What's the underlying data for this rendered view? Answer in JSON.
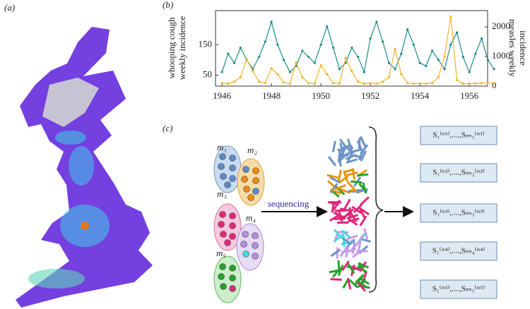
{
  "panel_labels": [
    "(a)",
    "(b)",
    "(c)"
  ],
  "chart_data": {
    "type": "line",
    "ylabel": [
      "whooping cough",
      "weekly incidence"
    ],
    "y2label": [
      "measles weekly",
      "incidence"
    ],
    "x": [
      1946,
      1946.25,
      1946.5,
      1946.75,
      1947,
      1947.25,
      1947.5,
      1947.75,
      1948,
      1948.25,
      1948.5,
      1948.75,
      1949,
      1949.25,
      1949.5,
      1949.75,
      1950,
      1950.25,
      1950.5,
      1950.75,
      1951,
      1951.25,
      1951.5,
      1951.75,
      1952,
      1952.25,
      1952.5,
      1952.75,
      1953,
      1953.25,
      1953.5,
      1953.75,
      1954,
      1954.25,
      1954.5,
      1954.75,
      1955,
      1955.25,
      1955.5,
      1955.75,
      1956,
      1956.25,
      1956.5,
      1956.75,
      1957
    ],
    "series": [
      {
        "name": "whooping cough",
        "color": "#1f8a8a",
        "values": [
          60,
          120,
          90,
          140,
          100,
          70,
          110,
          160,
          225,
          150,
          100,
          60,
          80,
          130,
          110,
          90,
          150,
          210,
          140,
          70,
          90,
          140,
          110,
          60,
          170,
          225,
          160,
          90,
          70,
          120,
          200,
          150,
          90,
          80,
          130,
          100,
          70,
          150,
          190,
          110,
          60,
          120,
          170,
          100,
          70
        ]
      },
      {
        "name": "measles",
        "color": "#f0b429",
        "axis": "y2",
        "values": [
          100,
          80,
          150,
          300,
          900,
          500,
          150,
          100,
          600,
          400,
          120,
          80,
          800,
          300,
          100,
          80,
          700,
          400,
          100,
          90,
          950,
          500,
          150,
          80,
          100,
          80,
          150,
          300,
          1250,
          400,
          100,
          80,
          90,
          80,
          100,
          300,
          1000,
          2350,
          200,
          80,
          80,
          90,
          100,
          100,
          100
        ]
      }
    ],
    "xlim": [
      1945.74,
      1956.74
    ],
    "xticks": [
      1946,
      1948,
      1950,
      1952,
      1954,
      1956
    ],
    "ylim": [
      14,
      262
    ],
    "yticks": [
      50,
      150
    ],
    "y2lim": [
      0,
      2550
    ],
    "y2ticks": [
      0,
      1000,
      2000
    ]
  },
  "diagram": {
    "groups": [
      "m₁",
      "m₂",
      "m₃",
      "m₄",
      "m₅"
    ],
    "arrow_label": "sequencing",
    "outputs": [
      "S₁⁽ᵐ¹⁾,....,Sₗₘ₁⁽ᵐ¹⁾",
      "S₁⁽ᵐ²⁾,....,Sₗₘ₂⁽ᵐ²⁾",
      "S₁⁽ᵐ³⁾,....,Sₗₘ₃⁽ᵐ³⁾",
      "S₁⁽ᵐ⁴⁾,....,Sₗₘ₄⁽ᵐ⁴⁾",
      "S₁⁽ᵐ⁵⁾,....,Sₗₘ₅⁽ᵐ⁵⁾"
    ]
  }
}
